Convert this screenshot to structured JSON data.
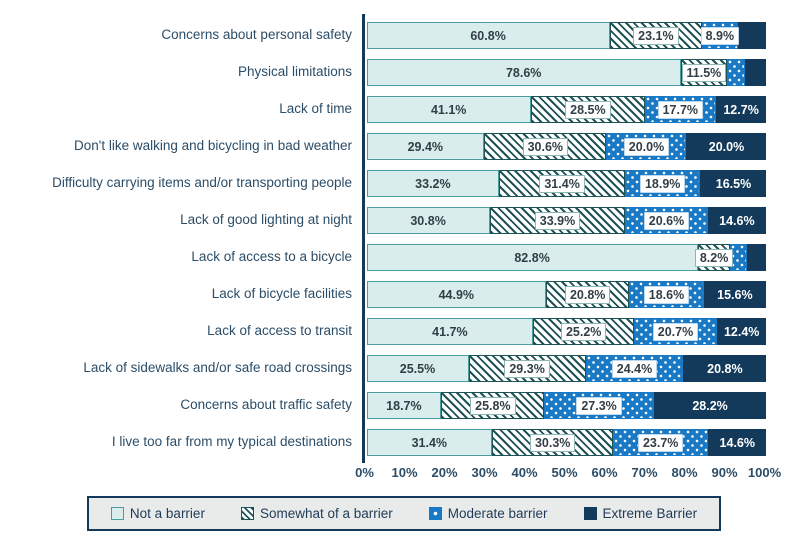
{
  "chart_data": {
    "type": "bar",
    "orientation": "horizontal",
    "stacked": true,
    "title": "",
    "xlabel": "",
    "ylabel": "",
    "xlim": [
      0,
      100
    ],
    "grid": false,
    "legend_position": "bottom",
    "x_ticks": [
      "0%",
      "10%",
      "20%",
      "30%",
      "40%",
      "50%",
      "60%",
      "70%",
      "80%",
      "90%",
      "100%"
    ],
    "categories": [
      "Concerns about personal safety",
      "Physical limitations",
      "Lack of time",
      "Don't like walking and bicycling in bad weather",
      "Difficulty carrying items and/or transporting people",
      "Lack of good lighting at night",
      "Lack of access to a bicycle",
      "Lack of bicycle facilities",
      "Lack of access to transit",
      "Lack of sidewalks and/or safe road crossings",
      "Concerns about traffic safety",
      "I live too far from my typical destinations"
    ],
    "series": [
      {
        "name": "Not a barrier",
        "style": "solid-light",
        "values": [
          60.8,
          78.6,
          41.1,
          29.4,
          33.2,
          30.8,
          82.8,
          44.9,
          41.7,
          25.5,
          18.7,
          31.4
        ],
        "labels": [
          "60.8%",
          "78.6%",
          "41.1%",
          "29.4%",
          "33.2%",
          "30.8%",
          "82.8%",
          "44.9%",
          "41.7%",
          "25.5%",
          "18.7%",
          "31.4%"
        ]
      },
      {
        "name": "Somewhat of a barrier",
        "style": "hatch",
        "values": [
          23.1,
          11.5,
          28.5,
          30.6,
          31.4,
          33.9,
          8.2,
          20.8,
          25.2,
          29.3,
          25.8,
          30.3
        ],
        "labels": [
          "23.1%",
          "11.5%",
          "28.5%",
          "30.6%",
          "31.4%",
          "33.9%",
          "8.2%",
          "20.8%",
          "25.2%",
          "29.3%",
          "25.8%",
          "30.3%"
        ]
      },
      {
        "name": "Moderate barrier",
        "style": "dots",
        "values": [
          8.9,
          4.5,
          17.7,
          20.0,
          18.9,
          20.6,
          4.2,
          18.6,
          20.7,
          24.4,
          27.3,
          23.7
        ],
        "labels": [
          "8.9%",
          "",
          "17.7%",
          "20.0%",
          "18.9%",
          "20.6%",
          "",
          "18.6%",
          "20.7%",
          "24.4%",
          "27.3%",
          "23.7%"
        ]
      },
      {
        "name": "Extreme Barrier",
        "style": "solid-dark",
        "values": [
          7.2,
          5.4,
          12.7,
          20.0,
          16.5,
          14.6,
          4.8,
          15.6,
          12.4,
          20.8,
          28.2,
          14.6
        ],
        "labels": [
          "",
          "",
          "12.7%",
          "20.0%",
          "16.5%",
          "14.6%",
          "",
          "15.6%",
          "12.4%",
          "20.8%",
          "28.2%",
          "14.6%"
        ]
      }
    ],
    "colors": {
      "not_barrier_fill": "#d9edec",
      "not_barrier_border": "#4a9d9f",
      "hatch_stripe": "#1d5356",
      "moderate_blue": "#1a79c5",
      "extreme_navy": "#133a5b",
      "axis_text": "#2b4d68",
      "data_label_text": "#323e46",
      "legend_bg": "#e9ebea"
    }
  }
}
